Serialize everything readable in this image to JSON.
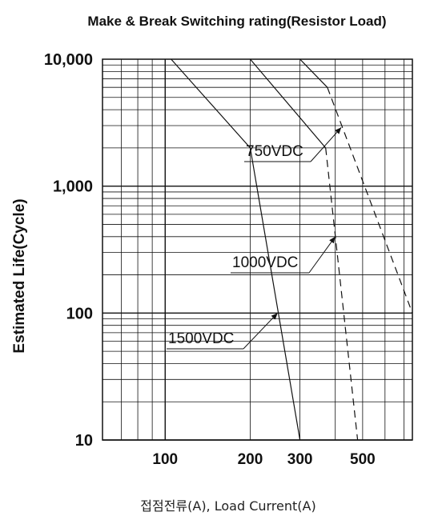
{
  "chart_data": {
    "type": "line",
    "title": "Make & Break Switching rating(Resistor Load)",
    "xlabel": "접점전류(A), Load Current(A)",
    "ylabel": "Estimated Life(Cycle)",
    "x_scale": "log",
    "y_scale": "log",
    "xlim": [
      60,
      750
    ],
    "ylim": [
      10,
      10000
    ],
    "x_ticks": [
      100,
      200,
      300,
      500
    ],
    "x_tick_labels": [
      "100",
      "200",
      "300",
      "500"
    ],
    "y_ticks": [
      10,
      100,
      1000,
      10000
    ],
    "y_tick_labels": [
      "10",
      "100",
      "1,000",
      "10,000"
    ],
    "grid": true,
    "series": [
      {
        "name": "1500VDC",
        "solid": [
          [
            105,
            10000
          ],
          [
            200,
            2000
          ],
          [
            300,
            10
          ]
        ],
        "dashed": []
      },
      {
        "name": "1000VDC",
        "solid": [
          [
            200,
            10000
          ],
          [
            370,
            2000
          ]
        ],
        "dashed": [
          [
            370,
            2000
          ],
          [
            480,
            10
          ]
        ]
      },
      {
        "name": "750VDC",
        "solid": [
          [
            300,
            10000
          ],
          [
            375,
            6000
          ]
        ],
        "dashed": [
          [
            375,
            6000
          ],
          [
            750,
            100
          ]
        ]
      }
    ],
    "annotations": [
      {
        "text": "750VDC",
        "series": "750VDC",
        "at": [
          420,
          2900
        ]
      },
      {
        "text": "1000VDC",
        "series": "1000VDC",
        "at": [
          400,
          400
        ]
      },
      {
        "text": "1500VDC",
        "series": "1500VDC",
        "at": [
          250,
          100
        ]
      }
    ]
  }
}
